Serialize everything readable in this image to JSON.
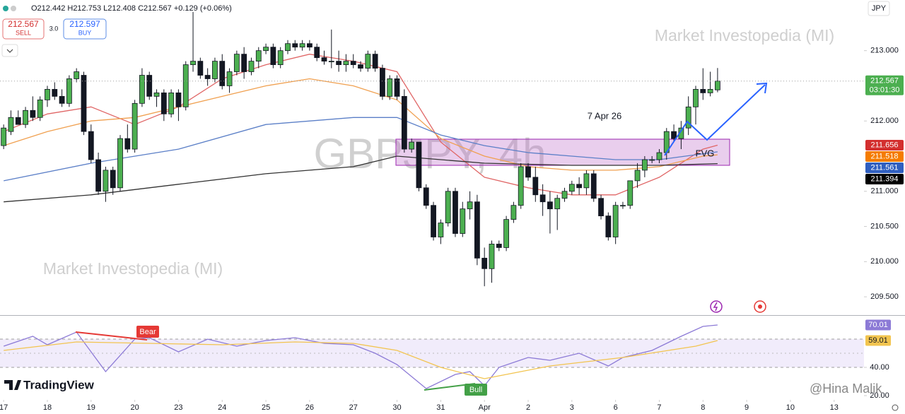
{
  "toolbar": {
    "ohlc": "O212.442 H212.753 L212.408 C212.567 +0.129 (+0.06%)",
    "sell_price": "212.567",
    "sell": "SELL",
    "spread": "3.0",
    "buy_price": "212.597",
    "buy": "BUY",
    "currency": "JPY"
  },
  "watermarks": {
    "symbol": "GBPJPY, 4h",
    "brand_top": "Market Investopedia (MI)",
    "brand_bottom": "Market Investopedia (MI)",
    "logo": "TradingView",
    "author": "@Hina Malik"
  },
  "chart_data": [
    {
      "type": "candlestick",
      "title": "GBPJPY, 4h",
      "x": [
        0,
        1,
        2,
        3,
        4,
        5,
        6,
        7,
        8,
        9,
        10,
        11,
        12,
        13,
        14,
        15,
        16,
        17,
        18,
        19,
        20,
        21,
        22,
        23,
        24,
        25,
        26,
        27,
        28,
        29,
        30,
        31,
        32,
        33,
        34,
        35,
        36,
        37,
        38,
        39,
        40,
        41,
        42,
        43,
        44,
        45,
        46,
        47,
        48,
        49,
        50,
        51,
        52,
        53,
        54,
        55,
        56,
        57,
        58,
        59,
        60,
        61,
        62,
        63,
        64,
        65,
        66,
        67,
        68,
        69,
        70,
        71,
        72,
        73,
        74,
        75,
        76,
        77,
        78,
        79,
        80,
        81,
        82,
        83,
        84,
        85,
        86,
        87,
        88,
        89,
        90,
        91,
        92,
        93,
        94,
        95,
        96,
        97,
        98
      ],
      "open": [
        211.65,
        211.85,
        212.05,
        211.95,
        212.15,
        212.05,
        212.3,
        212.45,
        212.35,
        212.25,
        212.6,
        212.65,
        211.85,
        211.45,
        211.0,
        211.3,
        211.05,
        211.75,
        211.6,
        212.25,
        212.65,
        212.35,
        212.4,
        212.1,
        212.4,
        212.2,
        212.8,
        212.85,
        212.65,
        212.6,
        212.85,
        212.5,
        212.7,
        212.95,
        212.7,
        212.85,
        213.0,
        213.05,
        212.8,
        213.0,
        213.1,
        213.05,
        213.1,
        213.05,
        212.9,
        212.85,
        212.85,
        212.8,
        212.85,
        212.8,
        212.75,
        212.95,
        212.75,
        212.35,
        212.6,
        212.35,
        211.6,
        211.7,
        211.05,
        210.8,
        210.35,
        210.55,
        211.0,
        210.4,
        210.75,
        210.85,
        210.05,
        209.9,
        210.25,
        210.2,
        210.6,
        210.8,
        211.35,
        211.2,
        210.95,
        210.85,
        210.75,
        210.9,
        211.0,
        211.1,
        211.05,
        211.25,
        210.9,
        210.65,
        210.35,
        210.8,
        210.8,
        211.15,
        211.3,
        211.45,
        211.45,
        211.55,
        211.85,
        211.75,
        211.9,
        212.2,
        212.45,
        212.4,
        212.442
      ],
      "high": [
        211.95,
        212.15,
        212.15,
        212.2,
        212.35,
        212.35,
        212.5,
        212.55,
        212.45,
        212.65,
        212.75,
        212.7,
        211.95,
        211.55,
        211.35,
        211.35,
        211.8,
        211.95,
        212.3,
        212.75,
        212.7,
        212.45,
        212.45,
        212.45,
        212.45,
        212.85,
        213.55,
        212.9,
        212.75,
        212.9,
        212.95,
        212.75,
        213.0,
        213.05,
        212.9,
        213.05,
        213.1,
        213.1,
        213.05,
        213.15,
        213.15,
        213.15,
        213.15,
        213.1,
        213.0,
        213.3,
        213.0,
        212.95,
        212.95,
        212.85,
        213.0,
        213.0,
        212.8,
        212.65,
        212.65,
        212.45,
        211.75,
        211.7,
        211.1,
        210.85,
        210.6,
        211.05,
        211.05,
        210.85,
        211.0,
        210.95,
        210.2,
        210.3,
        210.3,
        210.65,
        210.85,
        211.4,
        211.4,
        211.35,
        211.1,
        211.0,
        210.95,
        211.05,
        211.15,
        211.2,
        211.3,
        211.3,
        210.95,
        210.7,
        210.85,
        210.85,
        211.15,
        211.4,
        211.5,
        211.5,
        211.6,
        211.9,
        211.95,
        212.0,
        212.35,
        212.5,
        212.75,
        212.7,
        212.753
      ],
      "low": [
        211.6,
        211.8,
        211.95,
        211.9,
        212.0,
        212.0,
        212.2,
        212.3,
        212.2,
        212.2,
        212.55,
        211.8,
        211.4,
        210.95,
        210.85,
        210.95,
        211.0,
        211.55,
        211.55,
        212.2,
        212.3,
        212.2,
        212.0,
        212.05,
        212.0,
        212.15,
        212.7,
        212.6,
        212.5,
        212.55,
        212.45,
        212.4,
        212.65,
        212.6,
        212.65,
        212.75,
        212.95,
        212.75,
        212.75,
        212.95,
        213.0,
        213.0,
        213.0,
        212.85,
        212.8,
        212.75,
        212.7,
        212.7,
        212.75,
        212.7,
        212.7,
        212.7,
        212.3,
        212.3,
        212.3,
        211.55,
        211.55,
        211.0,
        210.75,
        210.3,
        210.25,
        210.5,
        210.35,
        210.35,
        210.6,
        209.95,
        209.65,
        209.7,
        210.15,
        210.15,
        210.55,
        210.75,
        211.15,
        210.85,
        210.65,
        210.4,
        210.45,
        210.85,
        210.95,
        210.95,
        210.95,
        210.85,
        210.6,
        210.3,
        210.25,
        210.75,
        210.75,
        211.05,
        211.2,
        211.4,
        211.4,
        211.45,
        211.7,
        211.6,
        211.8,
        211.95,
        212.3,
        212.35,
        212.408
      ],
      "close": [
        211.9,
        212.05,
        211.95,
        212.15,
        212.05,
        212.3,
        212.45,
        212.35,
        212.25,
        212.6,
        212.7,
        211.85,
        211.45,
        211.0,
        211.3,
        211.05,
        211.75,
        211.6,
        212.25,
        212.65,
        212.35,
        212.4,
        212.1,
        212.4,
        212.2,
        212.8,
        212.85,
        212.65,
        212.6,
        212.85,
        212.5,
        212.7,
        212.95,
        212.7,
        212.85,
        213.0,
        213.05,
        212.8,
        213.0,
        213.1,
        213.05,
        213.1,
        213.05,
        212.9,
        212.85,
        212.85,
        212.8,
        212.85,
        212.8,
        212.75,
        212.95,
        212.75,
        212.35,
        212.6,
        212.35,
        211.6,
        211.7,
        211.05,
        210.8,
        210.35,
        210.55,
        211.0,
        210.4,
        210.75,
        210.85,
        210.05,
        209.9,
        210.25,
        210.2,
        210.6,
        210.8,
        211.35,
        211.2,
        210.95,
        210.85,
        210.75,
        210.9,
        211.0,
        211.1,
        211.05,
        211.25,
        210.9,
        210.65,
        210.35,
        210.8,
        210.8,
        211.15,
        211.3,
        211.45,
        211.45,
        211.55,
        211.85,
        211.75,
        211.9,
        212.2,
        212.45,
        212.4,
        212.45,
        212.567
      ],
      "up_color": "#4caf50",
      "down_color": "#131722",
      "xlim": [
        -0.5,
        118.1
      ],
      "xticks": [
        {
          "value": 0,
          "label": "17"
        },
        {
          "value": 6,
          "label": "18"
        },
        {
          "value": 12,
          "label": "19"
        },
        {
          "value": 18,
          "label": "20"
        },
        {
          "value": 24,
          "label": "23"
        },
        {
          "value": 30,
          "label": "24"
        },
        {
          "value": 36,
          "label": "25"
        },
        {
          "value": 42,
          "label": "26"
        },
        {
          "value": 48,
          "label": "27"
        },
        {
          "value": 54,
          "label": "30"
        },
        {
          "value": 60,
          "label": "31"
        },
        {
          "value": 66,
          "label": "Apr"
        },
        {
          "value": 72,
          "label": "2"
        },
        {
          "value": 78,
          "label": "3"
        },
        {
          "value": 84,
          "label": "6"
        },
        {
          "value": 90,
          "label": "7"
        },
        {
          "value": 96,
          "label": "8"
        },
        {
          "value": 102,
          "label": "9"
        },
        {
          "value": 108,
          "label": "10"
        },
        {
          "value": 114,
          "label": "13"
        }
      ],
      "ylim": [
        209.24,
        213.72
      ],
      "yticks": [
        {
          "value": 213,
          "label": "213.000"
        },
        {
          "value": 212,
          "label": "212.000"
        },
        {
          "value": 211,
          "label": "211.000"
        },
        {
          "value": 210.5,
          "label": "210.500"
        },
        {
          "value": 210,
          "label": "210.000"
        },
        {
          "value": 209.5,
          "label": "209.500"
        }
      ],
      "grid": false,
      "moving_averages": [
        {
          "color": "#e06666",
          "label_color": "#d32f2f",
          "x": [
            0,
            6,
            12,
            18,
            24,
            30,
            36,
            42,
            48,
            54,
            60,
            66,
            72,
            78,
            84,
            90,
            96,
            98
          ],
          "values": [
            211.85,
            212.1,
            212.2,
            211.95,
            212.2,
            212.6,
            212.8,
            212.95,
            212.85,
            212.7,
            211.7,
            211.2,
            211.05,
            210.95,
            210.95,
            211.2,
            211.6,
            211.656
          ]
        },
        {
          "color": "#f0a050",
          "label_color": "#f57c00",
          "x": [
            0,
            6,
            12,
            18,
            24,
            30,
            36,
            42,
            48,
            54,
            60,
            66,
            72,
            78,
            84,
            90,
            96,
            98
          ],
          "values": [
            211.65,
            211.85,
            212.0,
            212.05,
            212.2,
            212.35,
            212.5,
            212.6,
            212.5,
            212.3,
            211.75,
            211.5,
            211.35,
            211.3,
            211.3,
            211.35,
            211.5,
            211.518
          ]
        },
        {
          "color": "#5b7fc7",
          "label_color": "#2f5fc0",
          "x": [
            0,
            12,
            24,
            36,
            48,
            54,
            60,
            66,
            72,
            78,
            84,
            90,
            98
          ],
          "values": [
            211.15,
            211.4,
            211.6,
            211.95,
            212.05,
            212.05,
            211.8,
            211.65,
            211.55,
            211.5,
            211.45,
            211.45,
            211.561
          ]
        },
        {
          "color": "#333333",
          "label_color": "#000000",
          "x": [
            0,
            12,
            24,
            36,
            48,
            54,
            66,
            78,
            90,
            98
          ],
          "values": [
            210.85,
            210.95,
            211.1,
            211.25,
            211.35,
            211.5,
            211.4,
            211.37,
            211.37,
            211.394
          ]
        }
      ],
      "countdown": "03:01:30",
      "annotations": {
        "date": "7 Apr 26",
        "zone": "FVG"
      }
    },
    {
      "type": "line",
      "xlim": [
        -0.5,
        118.1
      ],
      "ylim": [
        17.5,
        76.5
      ],
      "yticks": [
        {
          "value": 40,
          "label": "40.00"
        },
        {
          "value": 20,
          "label": "20.00"
        }
      ],
      "band": [
        40,
        60
      ],
      "midline": 50,
      "series": [
        {
          "color": "#8c7ad6",
          "x": [
            0,
            4,
            6,
            10,
            14,
            18,
            20,
            24,
            28,
            32,
            36,
            40,
            44,
            48,
            51,
            54,
            58,
            62,
            64,
            66,
            68,
            72,
            75,
            79,
            83,
            85,
            89,
            93,
            96,
            98
          ],
          "values": [
            55,
            62,
            56,
            65,
            37,
            60,
            61,
            51,
            60,
            55,
            59,
            61,
            57,
            56,
            50,
            42,
            25,
            35,
            37,
            27,
            40,
            47,
            45,
            50,
            41,
            47,
            52,
            62,
            69,
            70.01
          ]
        },
        {
          "color": "#f2c44f",
          "x": [
            0,
            10,
            20,
            30,
            40,
            48,
            54,
            60,
            66,
            70,
            75,
            80,
            85,
            90,
            95,
            98
          ],
          "values": [
            52,
            58,
            57,
            56,
            58,
            57,
            52,
            40,
            32,
            36,
            41,
            44,
            47,
            51,
            55,
            59.01
          ]
        }
      ],
      "annotations": {
        "bear": "Bear",
        "bull": "Bull"
      }
    }
  ]
}
